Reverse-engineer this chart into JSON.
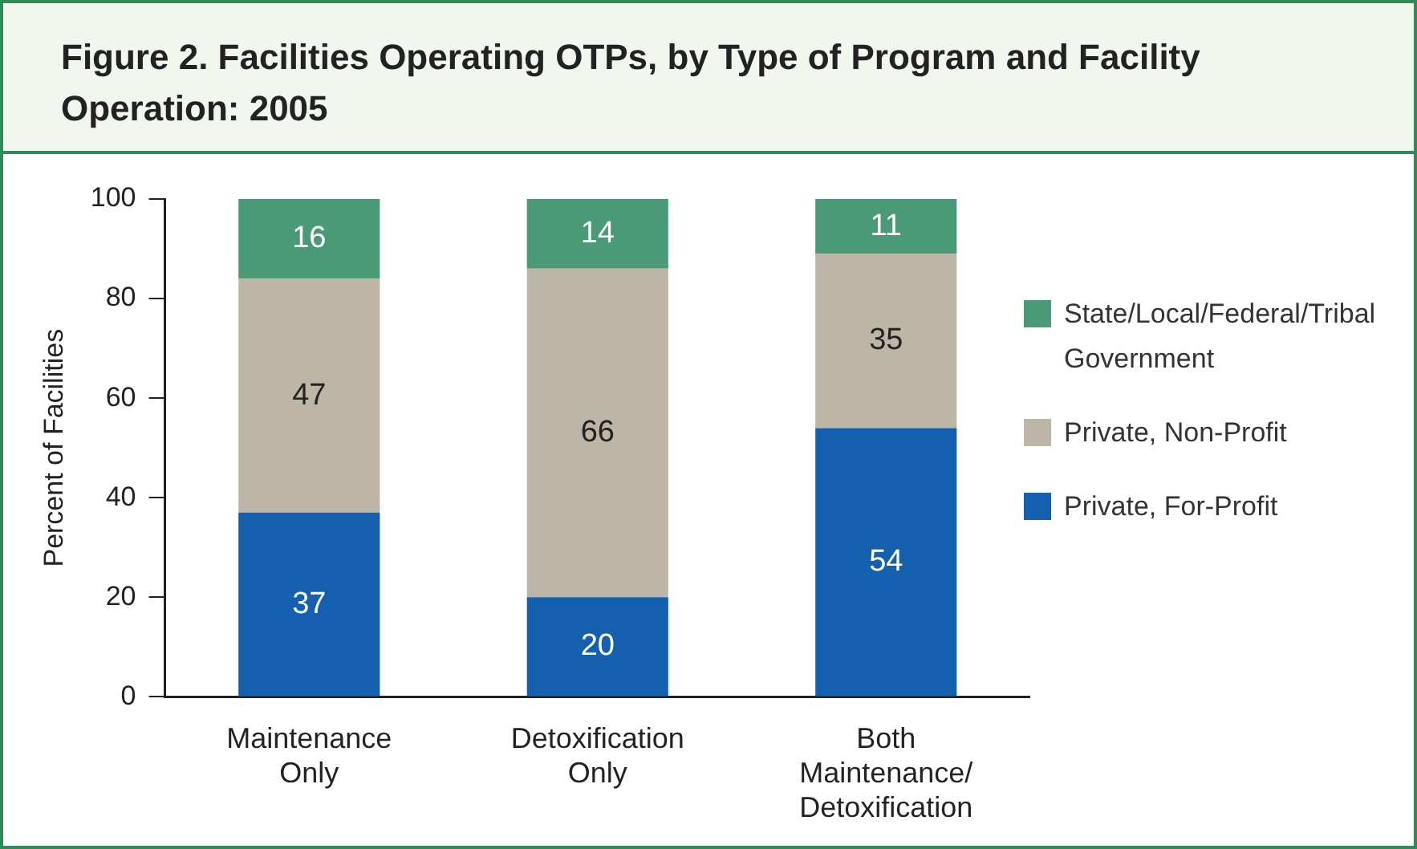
{
  "chart_data": {
    "type": "bar",
    "title": "Figure 2. Facilities Operating OTPs, by Type of Program and Facility Operation: 2005",
    "ylabel": "Percent of Facilities",
    "categories": [
      "Maintenance Only",
      "Detoxification Only",
      "Both Maintenance/Detoxification"
    ],
    "series": [
      {
        "name": "Private, For-Profit",
        "color": "#1560ae",
        "values": [
          37,
          20,
          54
        ]
      },
      {
        "name": "Private, Non-Profit",
        "color": "#bdb5a6",
        "values": [
          47,
          66,
          35
        ]
      },
      {
        "name": "State/Local/Federal/Tribal Government",
        "color": "#4a9a78",
        "values": [
          16,
          14,
          11
        ]
      }
    ],
    "stacked": true,
    "ylim": [
      0,
      100
    ],
    "yticks": [
      0,
      20,
      40,
      60,
      80,
      100
    ],
    "grid": false,
    "legend": "right",
    "data_labels": true
  }
}
